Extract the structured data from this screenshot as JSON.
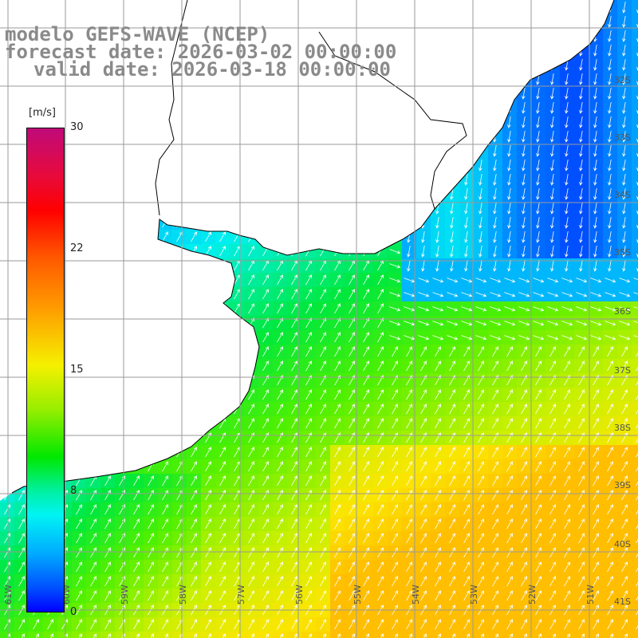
{
  "title": {
    "line1": "modelo GEFS-WAVE (NCEP)",
    "line2": "forecast date: 2026-03-02 00:00:00",
    "line3": "valid date: 2026-03-18 00:00:00"
  },
  "colorbar": {
    "unit": "[m/s]",
    "ticks": [
      "30",
      "22",
      "15",
      "8",
      "0"
    ],
    "range": [
      0,
      30
    ],
    "colors": [
      "#0000ff",
      "#00aaff",
      "#00f4f4",
      "#00e800",
      "#f5f000",
      "#ff9a00",
      "#ff0000",
      "#c00a7a"
    ]
  },
  "map": {
    "lat_labels": [
      "32S",
      "33S",
      "34S",
      "35S",
      "36S",
      "37S",
      "38S",
      "39S",
      "40S",
      "41S"
    ],
    "lon_labels": [
      "61W",
      "60W",
      "59W",
      "58W",
      "57W",
      "56W",
      "55W",
      "54W",
      "53W",
      "52W",
      "51W"
    ],
    "land_color": "#ffffff",
    "grid_color": "#9a9a9a",
    "arrow_color": "#ffffff",
    "field": "wind speed"
  }
}
